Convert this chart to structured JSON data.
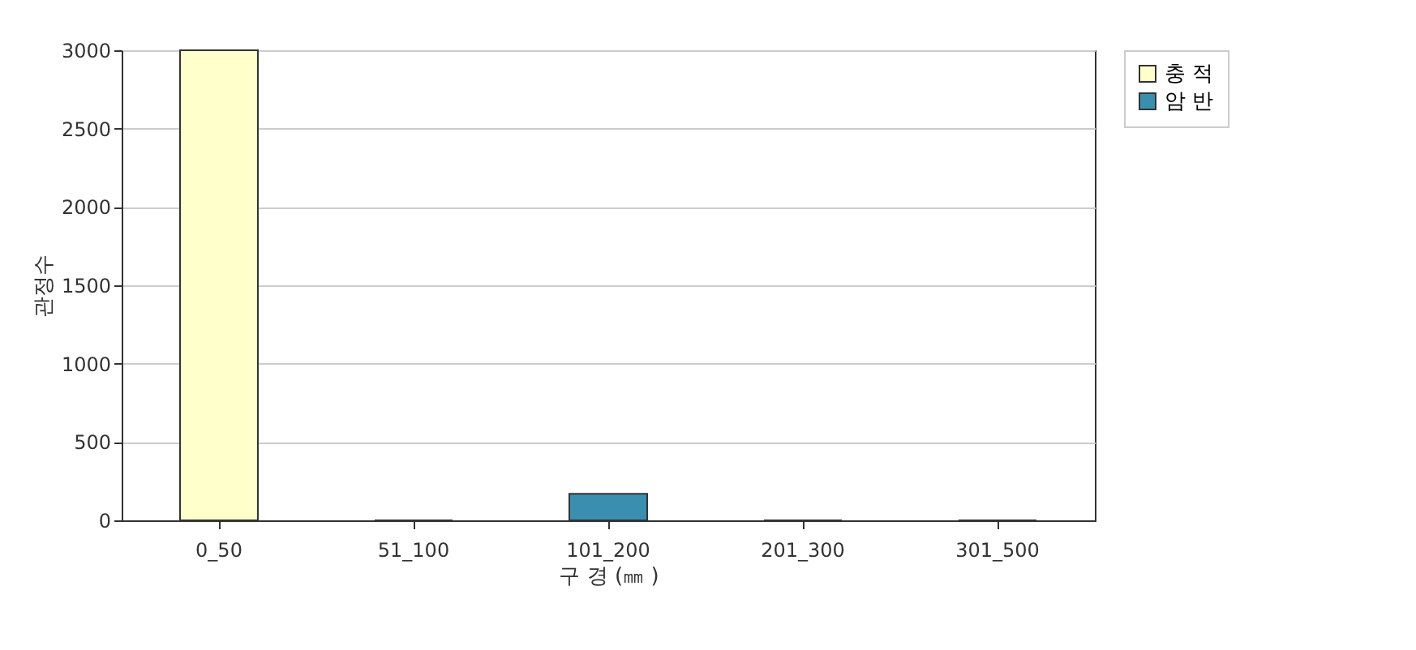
{
  "chart_data": {
    "type": "bar",
    "stacked": true,
    "categories": [
      "0_50",
      "51_100",
      "101_200",
      "201_300",
      "301_500"
    ],
    "series": [
      {
        "name": "충 적",
        "color": "#ffffcc",
        "values": [
          3000,
          null,
          null,
          null,
          null
        ]
      },
      {
        "name": "암 반",
        "color": "#3a8fb0",
        "values": [
          null,
          0,
          170,
          0,
          0
        ]
      }
    ],
    "xlabel": "구 경 (㎜ )",
    "ylabel": "관정수",
    "ylim": [
      0,
      3000
    ],
    "yticks": [
      0,
      500,
      1000,
      1500,
      2000,
      2500,
      3000
    ],
    "grid": "y",
    "legend": "top right"
  }
}
